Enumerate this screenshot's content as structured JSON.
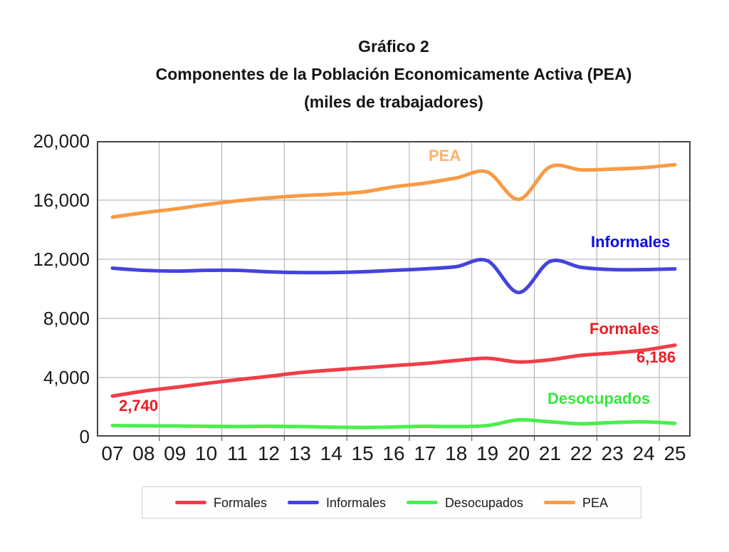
{
  "title": {
    "line1": "Gráfico 2",
    "line2": "Componentes de la Población Economicamente Activa (PEA)",
    "line3": "(miles de trabajadores)"
  },
  "chart_data": {
    "type": "line",
    "smoothed": true,
    "x": [
      "07",
      "08",
      "09",
      "10",
      "11",
      "12",
      "13",
      "14",
      "15",
      "16",
      "17",
      "18",
      "19",
      "20",
      "21",
      "22",
      "23",
      "24",
      "25"
    ],
    "series": [
      {
        "name": "Formales",
        "color": "#EF3E48",
        "values": [
          2740,
          3080,
          3330,
          3600,
          3850,
          4080,
          4330,
          4500,
          4650,
          4800,
          4950,
          5150,
          5300,
          5050,
          5200,
          5500,
          5650,
          5850,
          6186
        ]
      },
      {
        "name": "Informales",
        "color": "#4543DC",
        "values": [
          11400,
          11250,
          11200,
          11250,
          11250,
          11150,
          11100,
          11100,
          11150,
          11250,
          11350,
          11500,
          11900,
          9750,
          11850,
          11450,
          11300,
          11300,
          11350
        ]
      },
      {
        "name": "Desocupados",
        "color": "#4BEE4F",
        "values": [
          750,
          730,
          720,
          700,
          680,
          700,
          680,
          640,
          620,
          650,
          700,
          680,
          750,
          1130,
          1000,
          870,
          950,
          1000,
          900
        ]
      },
      {
        "name": "PEA",
        "color": "#F89B45",
        "values": [
          14850,
          15150,
          15400,
          15700,
          15950,
          16150,
          16300,
          16400,
          16550,
          16900,
          17150,
          17500,
          17900,
          16050,
          18250,
          18050,
          18100,
          18200,
          18400
        ]
      }
    ],
    "ylim": [
      0,
      20000
    ],
    "ytick_step": 4000,
    "xgrid_every": 2,
    "grid": true,
    "legend_position": "bottom"
  },
  "y_axis": {
    "labels": [
      "20,000",
      "16,000",
      "12,000",
      "8,000",
      "4,000",
      "0"
    ]
  },
  "x_axis": {
    "labels": [
      "07",
      "08",
      "09",
      "10",
      "11",
      "12",
      "13",
      "14",
      "15",
      "16",
      "17",
      "18",
      "19",
      "20",
      "21",
      "22",
      "23",
      "24",
      "25"
    ]
  },
  "annotations": [
    {
      "id": "pea-label",
      "text": "PEA",
      "color": "#FBB269"
    },
    {
      "id": "informales-label",
      "text": "Informales",
      "color": "#0A0AE6"
    },
    {
      "id": "formales-label",
      "text": "Formales",
      "color": "#EC1C24"
    },
    {
      "id": "formales-end-value",
      "text": "6,186",
      "color": "#EC1C24"
    },
    {
      "id": "formales-start-value",
      "text": "2,740",
      "color": "#EC1C24"
    },
    {
      "id": "desocupados-label",
      "text": "Desocupados",
      "color": "#35E83B"
    }
  ],
  "legend": {
    "items": [
      {
        "label": "Formales",
        "color": "#EF3E48"
      },
      {
        "label": "Informales",
        "color": "#4543DC"
      },
      {
        "label": "Desocupados",
        "color": "#4BEE4F"
      },
      {
        "label": "PEA",
        "color": "#F89B45"
      }
    ]
  },
  "style_colors": {
    "grid": "#ABABAB",
    "plot_border": "#454545",
    "tick": "#454545"
  }
}
